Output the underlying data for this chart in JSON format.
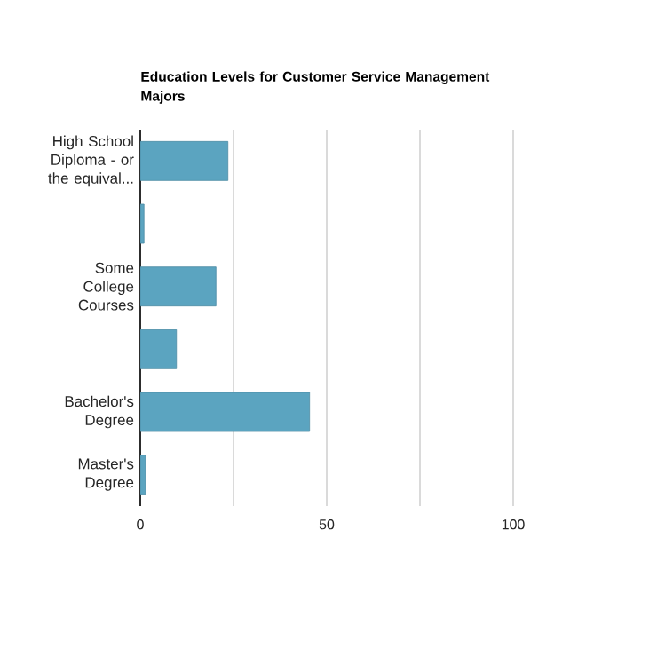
{
  "chart_data": {
    "type": "bar",
    "orientation": "horizontal",
    "title": "Education Levels for Customer Service Management Majors",
    "categories": [
      "High School Diploma - or the equival...",
      null,
      "Some College Courses",
      null,
      "Bachelor's Degree",
      "Master's Degree"
    ],
    "values": [
      23.5,
      1,
      20.3,
      9.7,
      45.4,
      1.4
    ],
    "color": "#5ba4c0",
    "xlim": [
      0,
      100
    ],
    "xticks": [
      0,
      {
        "value": 25,
        "label": null
      },
      50,
      {
        "value": 75,
        "label": null
      },
      100
    ],
    "grid": "x"
  }
}
